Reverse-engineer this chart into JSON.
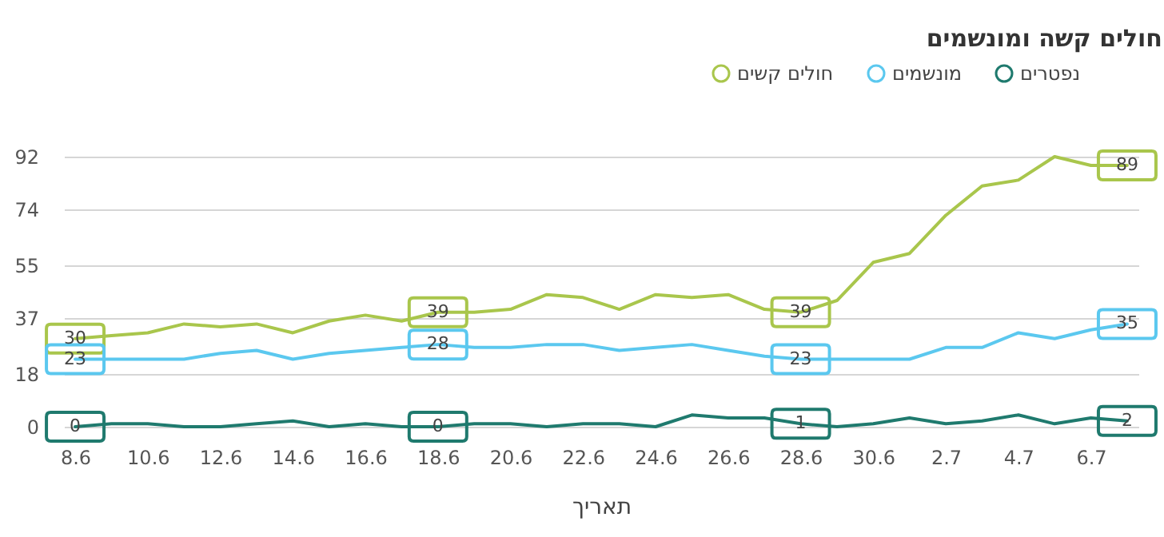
{
  "chart_data": {
    "type": "line",
    "title": "חולים קשה ומונשמים",
    "xlabel": "תאריך",
    "categories": [
      "8.6",
      null,
      "10.6",
      null,
      "12.6",
      null,
      "14.6",
      null,
      "16.6",
      null,
      "18.6",
      null,
      "20.6",
      null,
      "22.6",
      null,
      "24.6",
      null,
      "26.6",
      null,
      "28.6",
      null,
      "30.6",
      null,
      "2.7",
      null,
      "4.7",
      null,
      "6.7",
      null
    ],
    "series": [
      {
        "name": "חולים קשים",
        "color": "#a9c64c",
        "values": [
          30,
          31,
          32,
          35,
          34,
          35,
          32,
          36,
          38,
          36,
          39,
          39,
          40,
          45,
          44,
          40,
          45,
          44,
          45,
          40,
          39,
          43,
          56,
          59,
          72,
          82,
          84,
          92,
          89,
          89
        ],
        "value_labels": [
          "30",
          null,
          null,
          null,
          null,
          null,
          null,
          null,
          null,
          null,
          "39",
          null,
          null,
          null,
          null,
          null,
          null,
          null,
          null,
          null,
          "39",
          null,
          null,
          null,
          null,
          null,
          null,
          null,
          null,
          "89"
        ]
      },
      {
        "name": "מונשמים",
        "color": "#5bc8ef",
        "values": [
          23,
          23,
          23,
          23,
          25,
          26,
          23,
          25,
          26,
          27,
          28,
          27,
          27,
          28,
          28,
          26,
          27,
          28,
          26,
          24,
          23,
          23,
          23,
          23,
          27,
          27,
          32,
          30,
          33,
          35
        ],
        "value_labels": [
          "23",
          null,
          null,
          null,
          null,
          null,
          null,
          null,
          null,
          null,
          "28",
          null,
          null,
          null,
          null,
          null,
          null,
          null,
          null,
          null,
          "23",
          null,
          null,
          null,
          null,
          null,
          null,
          null,
          null,
          "35"
        ]
      },
      {
        "name": "נפטרים",
        "color": "#1f7a6e",
        "values": [
          0,
          1,
          1,
          0,
          0,
          1,
          2,
          0,
          1,
          0,
          0,
          1,
          1,
          0,
          1,
          1,
          0,
          4,
          3,
          3,
          1,
          0,
          1,
          3,
          1,
          2,
          4,
          1,
          3,
          2
        ],
        "value_labels": [
          "0",
          null,
          null,
          null,
          null,
          null,
          null,
          null,
          null,
          null,
          "0",
          null,
          null,
          null,
          null,
          null,
          null,
          null,
          null,
          null,
          "1",
          null,
          null,
          null,
          null,
          null,
          null,
          null,
          null,
          "2"
        ]
      }
    ],
    "ylim": [
      0,
      92
    ],
    "yticks": [
      0,
      18,
      37,
      55,
      74,
      92
    ],
    "grid": "y",
    "legend": "top right",
    "marker": "none",
    "line_style": "solid"
  }
}
